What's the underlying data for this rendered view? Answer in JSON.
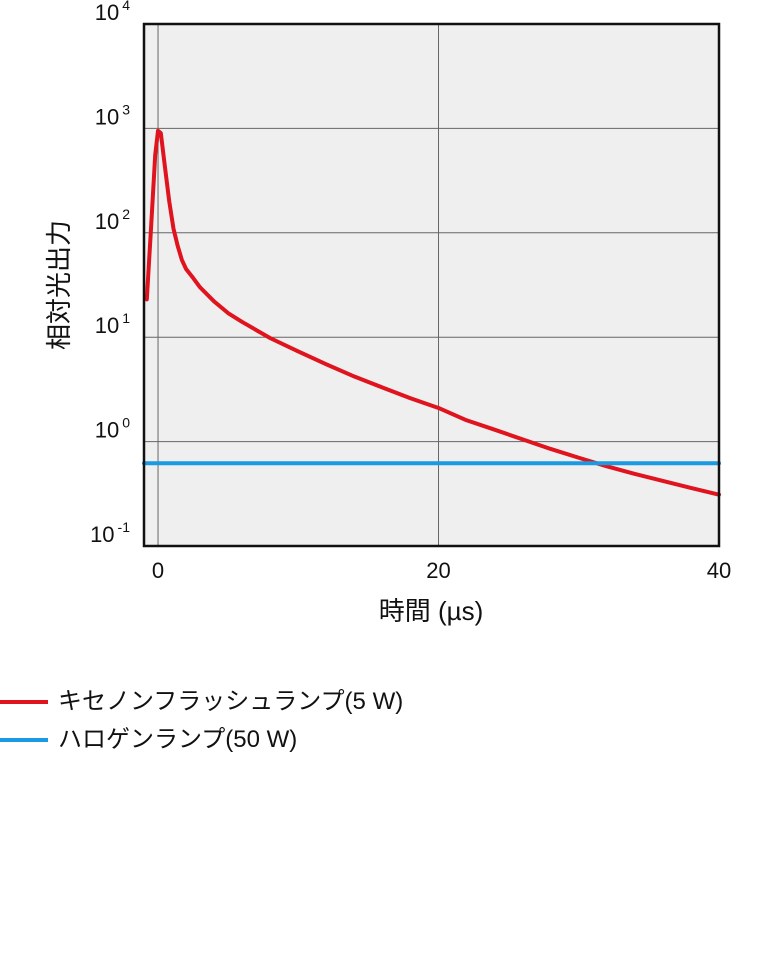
{
  "chart_data": {
    "type": "line",
    "title": "",
    "xlabel": "時間 (µs)",
    "ylabel": "相対光出力",
    "xlim": [
      -1,
      40
    ],
    "ylim": [
      0.1,
      10000
    ],
    "y_scale": "log",
    "x_ticks": [
      0,
      20,
      40
    ],
    "y_ticks": [
      {
        "base": "10",
        "exp": "4"
      },
      {
        "base": "10",
        "exp": "3"
      },
      {
        "base": "10",
        "exp": "2"
      },
      {
        "base": "10",
        "exp": "1"
      },
      {
        "base": "10",
        "exp": "0"
      },
      {
        "base": "10",
        "exp": "-1"
      }
    ],
    "grid": {
      "x_major": true,
      "y_major": true
    },
    "plot_background": "#efefef",
    "legend_position": "below-left",
    "series": [
      {
        "name": "キセノンフラッシュランプ(5 W)",
        "color": "#e0141e",
        "x": [
          -0.8,
          -0.5,
          -0.2,
          0.0,
          0.2,
          0.5,
          0.8,
          1.1,
          1.4,
          1.7,
          2.0,
          2.5,
          3.0,
          4.0,
          5.0,
          6.0,
          8.0,
          10.0,
          12.0,
          14.0,
          16.0,
          18.0,
          20.0,
          22.0,
          24.0,
          26.0,
          28.0,
          30.0,
          32.0,
          34.0,
          36.0,
          38.0,
          40.0
        ],
        "y": [
          23,
          110,
          560,
          950,
          900,
          420,
          200,
          110,
          75,
          55,
          45,
          37,
          30,
          22,
          17,
          14,
          9.8,
          7.3,
          5.5,
          4.2,
          3.3,
          2.6,
          2.1,
          1.6,
          1.3,
          1.05,
          0.85,
          0.7,
          0.58,
          0.49,
          0.42,
          0.36,
          0.31
        ]
      },
      {
        "name": "ハロゲンランプ(50 W)",
        "color": "#1a9ae0",
        "x": [
          -1,
          40
        ],
        "y": [
          0.62,
          0.62
        ]
      }
    ]
  }
}
